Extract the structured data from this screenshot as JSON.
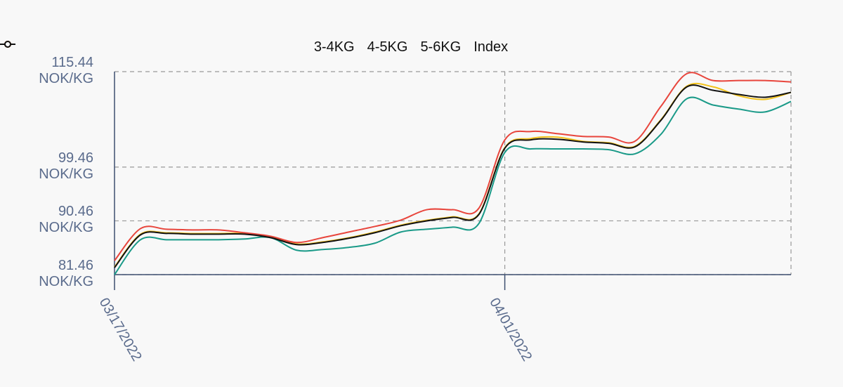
{
  "chart_data": {
    "type": "line",
    "x": [
      "03/17/2022",
      "03/18/2022",
      "03/19/2022",
      "03/20/2022",
      "03/21/2022",
      "03/22/2022",
      "03/23/2022",
      "03/24/2022",
      "03/25/2022",
      "03/26/2022",
      "03/27/2022",
      "03/28/2022",
      "03/29/2022",
      "03/30/2022",
      "03/31/2022",
      "04/01/2022",
      "04/02/2022",
      "04/03/2022",
      "04/04/2022",
      "04/05/2022",
      "04/06/2022",
      "04/07/2022",
      "04/08/2022",
      "04/09/2022",
      "04/10/2022",
      "04/11/2022",
      "04/12/2022"
    ],
    "series": [
      {
        "name": "3-4KG",
        "color": "#1a9a88",
        "values": [
          81.46,
          87.3,
          87.3,
          87.3,
          87.3,
          87.42,
          87.65,
          85.55,
          85.67,
          86.02,
          86.72,
          88.59,
          89.06,
          89.41,
          89.99,
          101.91,
          102.5,
          102.5,
          102.5,
          102.38,
          101.68,
          104.95,
          110.91,
          109.86,
          109.16,
          108.69,
          110.45
        ]
      },
      {
        "name": "4-5KG",
        "color": "#f2c21b",
        "values": [
          82.73,
          88.22,
          88.46,
          88.34,
          88.34,
          88.34,
          87.75,
          86.59,
          86.94,
          87.64,
          88.57,
          89.74,
          90.56,
          91.14,
          91.61,
          102.72,
          104.25,
          104.48,
          103.77,
          103.53,
          102.95,
          107.39,
          113.02,
          112.9,
          111.39,
          110.8,
          111.97
        ]
      },
      {
        "name": "5-6KG",
        "color": "#e8453c",
        "values": [
          83.8,
          89.17,
          89.06,
          88.94,
          88.94,
          88.47,
          87.89,
          86.84,
          87.65,
          88.59,
          89.52,
          90.58,
          92.33,
          92.33,
          92.56,
          104.02,
          105.42,
          105.07,
          104.6,
          104.49,
          103.78,
          109.63,
          115.12,
          113.95,
          113.95,
          113.95,
          113.72
        ]
      },
      {
        "name": "Index",
        "color": "#111111",
        "values": [
          82.63,
          88.12,
          88.36,
          88.24,
          88.24,
          88.24,
          87.65,
          86.49,
          86.84,
          87.54,
          88.47,
          89.64,
          90.46,
          91.04,
          91.51,
          102.62,
          104.02,
          104.13,
          103.67,
          103.43,
          102.85,
          107.29,
          112.9,
          112.32,
          111.62,
          111.15,
          111.97
        ]
      }
    ],
    "xlim": [
      "03/17/2022",
      "04/12/2022"
    ],
    "xticks": [
      "03/17/2022",
      "04/01/2022"
    ],
    "ylim": [
      81.46,
      115.44
    ],
    "yticks": [
      {
        "value": 81.46,
        "label": "81.46 NOK/KG"
      },
      {
        "value": 90.46,
        "label": "90.46 NOK/KG"
      },
      {
        "value": 99.46,
        "label": "99.46 NOK/KG"
      },
      {
        "value": 115.44,
        "label": "115.44 NOK/KG"
      }
    ],
    "grid": true,
    "legend": "top"
  }
}
